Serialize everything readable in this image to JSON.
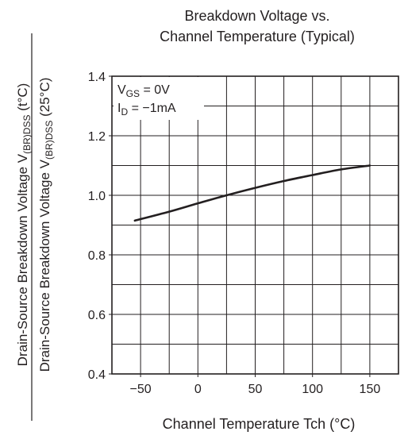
{
  "chart_data": {
    "type": "line",
    "title": [
      "Breakdown Voltage vs.",
      "Channel Temperature (Typical)"
    ],
    "xlabel": "Channel Temperature  Tch  (°C)",
    "ylabel_top": {
      "prefix": "Drain-Source Breakdown Voltage  V",
      "sub": "(BR)DSS",
      "suffix": " (t°C)"
    },
    "ylabel_bottom": {
      "prefix": "Drain-Source Breakdown Voltage  V",
      "sub": "(BR)DSS",
      "suffix": " (25°C)"
    },
    "xlim": [
      -75,
      175
    ],
    "ylim": [
      0.4,
      1.4
    ],
    "xticks": [
      -50,
      0,
      50,
      100,
      150
    ],
    "xtick_labels": [
      "−50",
      "0",
      "50",
      "100",
      "150"
    ],
    "yticks": [
      0.4,
      0.6,
      0.8,
      1.0,
      1.2,
      1.4
    ],
    "ytick_labels": [
      "0.4",
      "0.6",
      "0.8",
      "1.0",
      "1.2",
      "1.4"
    ],
    "x_minor_step": 25,
    "y_minor_step": 0.1,
    "grid": true,
    "conditions": [
      {
        "prefix": "V",
        "sub": "GS",
        "suffix": " = 0V"
      },
      {
        "prefix": "I",
        "sub": "D",
        "suffix": " = −1mA"
      }
    ],
    "series": [
      {
        "x": [
          -55,
          -25,
          0,
          25,
          50,
          75,
          100,
          125,
          150
        ],
        "y": [
          0.915,
          0.945,
          0.973,
          1.0,
          1.025,
          1.048,
          1.068,
          1.087,
          1.1
        ]
      }
    ]
  }
}
